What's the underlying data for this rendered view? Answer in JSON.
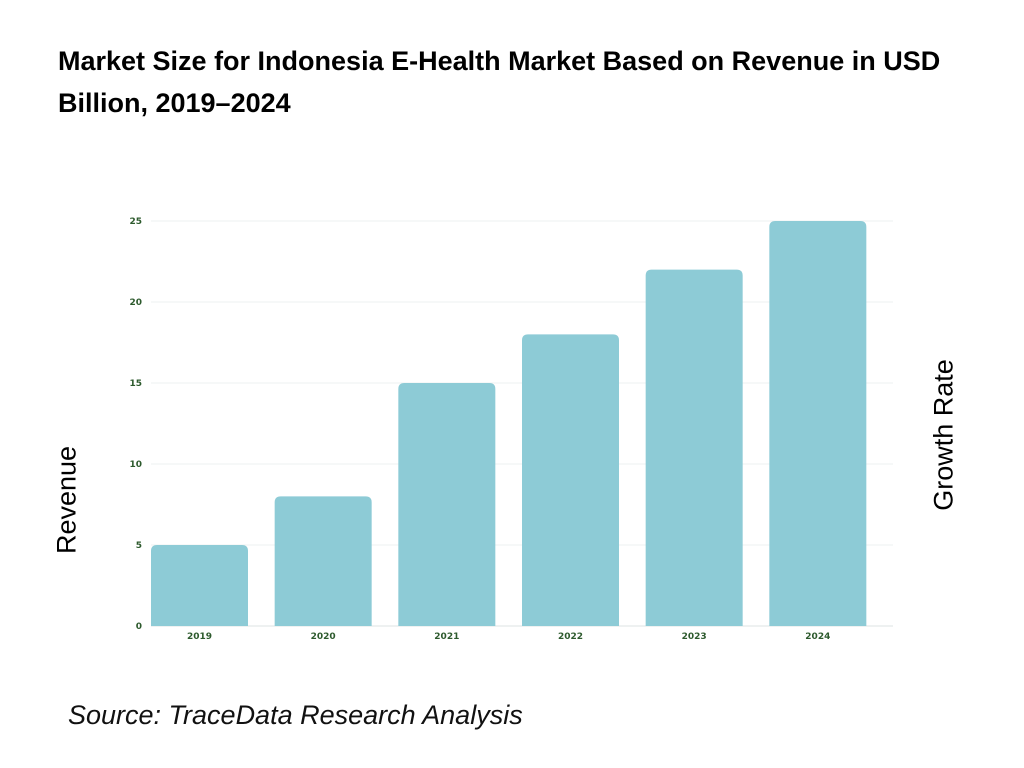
{
  "chart_data": {
    "type": "bar",
    "title": "Market Size for Indonesia E-Health Market Based on Revenue in USD Billion, 2019–2024",
    "categories": [
      "2019",
      "2020",
      "2021",
      "2022",
      "2023",
      "2024"
    ],
    "values": [
      5,
      8,
      15,
      18,
      22,
      25
    ],
    "ylabel": "Revenue",
    "y2label": "Growth Rate",
    "ylim": [
      0,
      25
    ],
    "yticks": [
      0,
      5,
      10,
      15,
      20,
      25
    ],
    "grid": true,
    "bar_color": "#8dcbd6",
    "tick_color": "#2d5a2d"
  },
  "source": "Source: TraceData Research Analysis"
}
